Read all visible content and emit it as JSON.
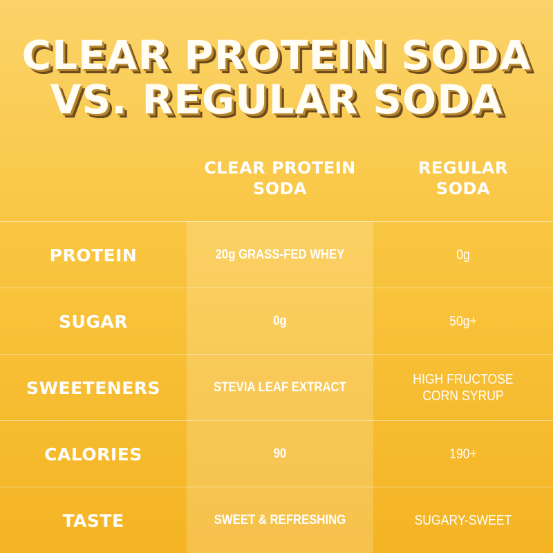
{
  "title": {
    "line1": "CLEAR PROTEIN SODA",
    "line2": "VS. REGULAR SODA"
  },
  "columns": {
    "protein_line1": "CLEAR PROTEIN",
    "protein_line2": "SODA",
    "regular_line1": "REGULAR",
    "regular_line2": "SODA"
  },
  "rows": [
    {
      "label": "PROTEIN",
      "clear": "20g GRASS-FED WHEY",
      "regular_line1": "0g",
      "regular_line2": ""
    },
    {
      "label": "SUGAR",
      "clear": "0g",
      "regular_line1": "50g+",
      "regular_line2": ""
    },
    {
      "label": "SWEETENERS",
      "clear": "STEVIA LEAF EXTRACT",
      "regular_line1": "HIGH FRUCTOSE",
      "regular_line2": "CORN SYRUP"
    },
    {
      "label": "CALORIES",
      "clear": "90",
      "regular_line1": "190+",
      "regular_line2": ""
    },
    {
      "label": "TASTE",
      "clear": "SWEET & REFRESHING",
      "regular_line1": "SUGARY-SWEET",
      "regular_line2": ""
    }
  ],
  "colors": {
    "background_top": "#fbd36a",
    "background_bottom": "#f4b424",
    "text": "#ffffff",
    "title_shadow": "#6b4a1f"
  }
}
